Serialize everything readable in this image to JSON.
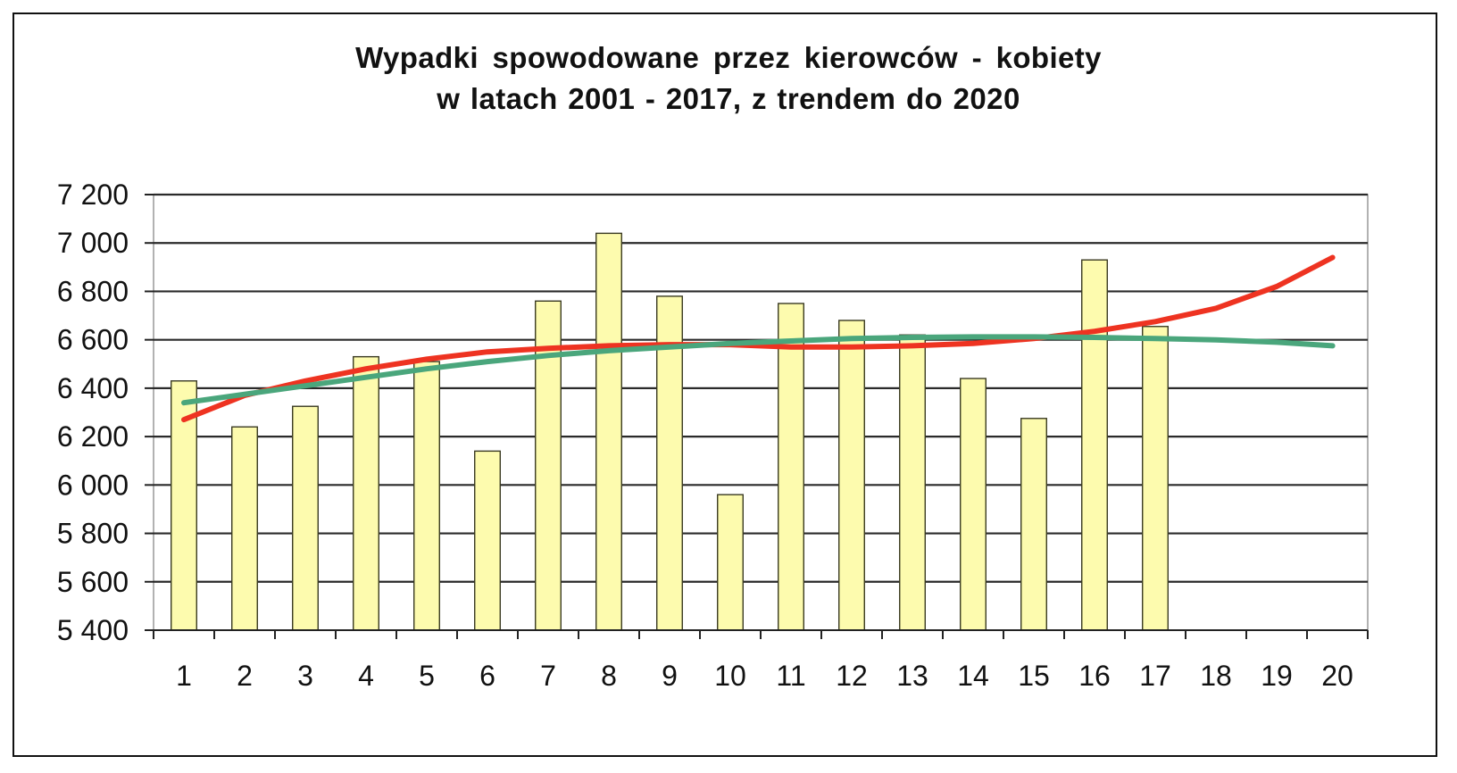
{
  "chart_data": {
    "type": "bar",
    "title": "Wypadki spowodowane przez kierowców - kobiety",
    "subtitle": "w latach 2001 - 2017, z trendem do 2020",
    "categories": [
      "1",
      "2",
      "3",
      "4",
      "5",
      "6",
      "7",
      "8",
      "9",
      "10",
      "11",
      "12",
      "13",
      "14",
      "15",
      "16",
      "17",
      "18",
      "19",
      "20"
    ],
    "ylim": [
      5400,
      7200
    ],
    "yticks": [
      5400,
      5600,
      5800,
      6000,
      6200,
      6400,
      6600,
      6800,
      7000,
      7200
    ],
    "ytick_labels": [
      "5 400",
      "5 600",
      "5 800",
      "6 000",
      "6 200",
      "6 400",
      "6 600",
      "6 800",
      "7 000",
      "7 200"
    ],
    "grid": true,
    "series": [
      {
        "kind": "bar",
        "values": [
          6430,
          6240,
          6325,
          6530,
          6510,
          6140,
          6760,
          7040,
          6780,
          5960,
          6750,
          6680,
          6620,
          6440,
          6275,
          6930,
          6655,
          null,
          null,
          null
        ]
      },
      {
        "kind": "line",
        "values": [
          6270,
          6370,
          6430,
          6480,
          6520,
          6550,
          6565,
          6575,
          6580,
          6580,
          6570,
          6570,
          6575,
          6585,
          6605,
          6635,
          6675,
          6730,
          6820,
          6940
        ]
      },
      {
        "kind": "line",
        "values": [
          6340,
          6375,
          6410,
          6445,
          6480,
          6510,
          6535,
          6555,
          6570,
          6585,
          6595,
          6605,
          6610,
          6612,
          6612,
          6610,
          6605,
          6600,
          6590,
          6575
        ]
      }
    ],
    "colors": {
      "bar_fill": "#fdfbae",
      "bar_stroke": "#3a3a22",
      "trend_red": "#ee3321",
      "trend_green": "#4aa67c",
      "gridline": "#2a2a2a"
    }
  }
}
